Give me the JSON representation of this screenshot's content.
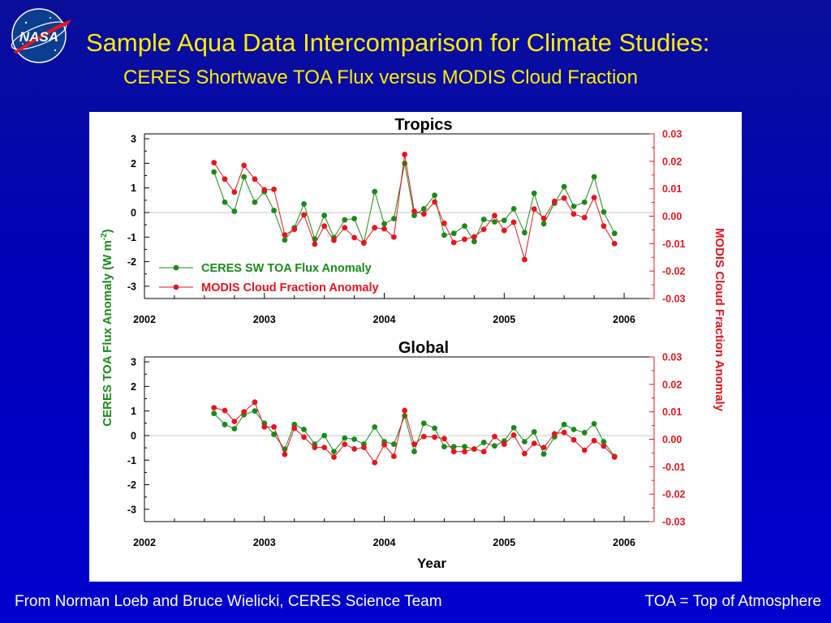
{
  "slide": {
    "title": "Sample Aqua Data Intercomparison for Climate Studies:",
    "subtitle": "CERES Shortwave TOA Flux versus MODIS Cloud Fraction",
    "footer_left": "From Norman Loeb and Bruce Wielicki, CERES Science Team",
    "footer_right": "TOA = Top of Atmosphere",
    "logo_text": "NASA"
  },
  "colors": {
    "background": "#0000c0",
    "title": "#ffee00",
    "ceres": "#1a8a1a",
    "modis": "#e8141e",
    "zero_line": "#c8c8c8"
  },
  "chart_data": [
    {
      "type": "line",
      "title": "Tropics",
      "xlabel": "",
      "ylabel_left": "CERES TOA Flux Anomaly (W m-2)",
      "ylabel_right": "MODIS Cloud Fraction Anomaly",
      "x_ticks": [
        "2002",
        "2003",
        "2004",
        "2005",
        "2006"
      ],
      "xlim": [
        2002,
        2006.25
      ],
      "ylim_left": [
        -3.5,
        3.2
      ],
      "ylim_right": [
        -0.03,
        0.03
      ],
      "yticks_left": [
        "3",
        "2",
        "1",
        "0",
        "-1",
        "-2",
        "-3"
      ],
      "yticks_right": [
        "0.03",
        "0.02",
        "0.01",
        "0.00",
        "-0.01",
        "-0.02",
        "-0.03"
      ],
      "legend": {
        "placement": "bottom-left",
        "entries": [
          "CERES SW TOA Flux Anomaly",
          "MODIS Cloud Fraction Anomaly"
        ]
      },
      "x": [
        2002.58,
        2002.67,
        2002.75,
        2002.83,
        2002.92,
        2003.0,
        2003.08,
        2003.17,
        2003.25,
        2003.33,
        2003.42,
        2003.5,
        2003.58,
        2003.67,
        2003.75,
        2003.83,
        2003.92,
        2004.0,
        2004.08,
        2004.17,
        2004.25,
        2004.33,
        2004.42,
        2004.5,
        2004.58,
        2004.67,
        2004.75,
        2004.83,
        2004.92,
        2005.0,
        2005.08,
        2005.17,
        2005.25,
        2005.33,
        2005.42,
        2005.5,
        2005.58,
        2005.67,
        2005.75,
        2005.83,
        2005.92
      ],
      "series": [
        {
          "name": "CERES SW TOA Flux Anomaly",
          "axis": "left",
          "values": [
            1.65,
            0.42,
            0.05,
            1.45,
            0.42,
            0.85,
            0.08,
            -1.12,
            -0.62,
            0.35,
            -1.08,
            -0.12,
            -1.02,
            -0.3,
            -0.25,
            -1.22,
            0.85,
            -0.46,
            -0.25,
            2.0,
            -0.12,
            0.15,
            0.7,
            -0.92,
            -0.85,
            -0.55,
            -1.18,
            -0.28,
            -0.38,
            -0.32,
            0.15,
            -0.82,
            0.78,
            -0.46,
            0.38,
            1.05,
            0.25,
            0.42,
            1.45,
            0.02,
            -0.85
          ]
        },
        {
          "name": "MODIS Cloud Fraction Anomaly",
          "axis": "right",
          "values": [
            0.0195,
            0.0135,
            0.0088,
            0.0185,
            0.0135,
            0.0096,
            0.0098,
            -0.0068,
            -0.0048,
            0.0005,
            -0.0102,
            -0.0036,
            -0.0088,
            -0.0042,
            -0.0078,
            -0.0098,
            -0.0042,
            -0.0046,
            -0.0076,
            0.0225,
            0.0018,
            0.0008,
            0.0052,
            -0.0026,
            -0.0096,
            -0.0084,
            -0.0075,
            -0.0048,
            0.0002,
            -0.0052,
            -0.0022,
            -0.0158,
            0.0026,
            -0.0008,
            0.0054,
            0.0066,
            0.0008,
            -0.0005,
            0.0068,
            -0.0036,
            -0.01
          ]
        }
      ]
    },
    {
      "type": "line",
      "title": "Global",
      "xlabel": "Year",
      "ylabel_left": "CERES TOA Flux Anomaly (W m-2)",
      "ylabel_right": "MODIS Cloud Fraction Anomaly",
      "x_ticks": [
        "2002",
        "2003",
        "2004",
        "2005",
        "2006"
      ],
      "xlim": [
        2002,
        2006.25
      ],
      "ylim_left": [
        -3.5,
        3.2
      ],
      "ylim_right": [
        -0.03,
        0.03
      ],
      "yticks_left": [
        "3",
        "2",
        "1",
        "0",
        "-1",
        "-2",
        "-3"
      ],
      "yticks_right": [
        "0.03",
        "0.02",
        "0.01",
        "0.00",
        "-0.01",
        "-0.02",
        "-0.03"
      ],
      "x": [
        2002.58,
        2002.67,
        2002.75,
        2002.83,
        2002.92,
        2003.0,
        2003.08,
        2003.17,
        2003.25,
        2003.33,
        2003.42,
        2003.5,
        2003.58,
        2003.67,
        2003.75,
        2003.83,
        2003.92,
        2004.0,
        2004.08,
        2004.17,
        2004.25,
        2004.33,
        2004.42,
        2004.5,
        2004.58,
        2004.67,
        2004.75,
        2004.83,
        2004.92,
        2005.0,
        2005.08,
        2005.17,
        2005.25,
        2005.33,
        2005.42,
        2005.5,
        2005.58,
        2005.67,
        2005.75,
        2005.83,
        2005.92
      ],
      "series": [
        {
          "name": "CERES SW TOA Flux Anomaly",
          "axis": "left",
          "values": [
            0.9,
            0.45,
            0.28,
            0.85,
            1.0,
            0.5,
            0.05,
            -0.55,
            0.45,
            0.25,
            -0.35,
            0.0,
            -0.65,
            -0.1,
            -0.15,
            -0.35,
            0.35,
            -0.25,
            -0.35,
            0.8,
            -0.65,
            0.5,
            0.3,
            -0.45,
            -0.45,
            -0.45,
            -0.55,
            -0.28,
            -0.42,
            -0.22,
            0.32,
            -0.25,
            0.15,
            -0.75,
            -0.05,
            0.45,
            0.25,
            0.12,
            0.48,
            -0.25,
            -0.85
          ]
        },
        {
          "name": "MODIS Cloud Fraction Anomaly",
          "axis": "right",
          "values": [
            0.0115,
            0.0105,
            0.0065,
            0.01,
            0.0135,
            0.0045,
            0.0045,
            -0.0055,
            0.004,
            0.0008,
            -0.003,
            -0.003,
            -0.0065,
            -0.0018,
            -0.0035,
            -0.003,
            -0.0085,
            -0.002,
            -0.0062,
            0.0105,
            -0.0018,
            0.001,
            0.0008,
            0.0002,
            -0.0045,
            -0.0045,
            -0.0035,
            -0.0045,
            0.001,
            -0.0018,
            0.0015,
            -0.0052,
            -0.0015,
            -0.003,
            0.002,
            0.0025,
            -0.0002,
            -0.004,
            -0.0005,
            -0.0025,
            -0.0065
          ]
        }
      ]
    }
  ]
}
